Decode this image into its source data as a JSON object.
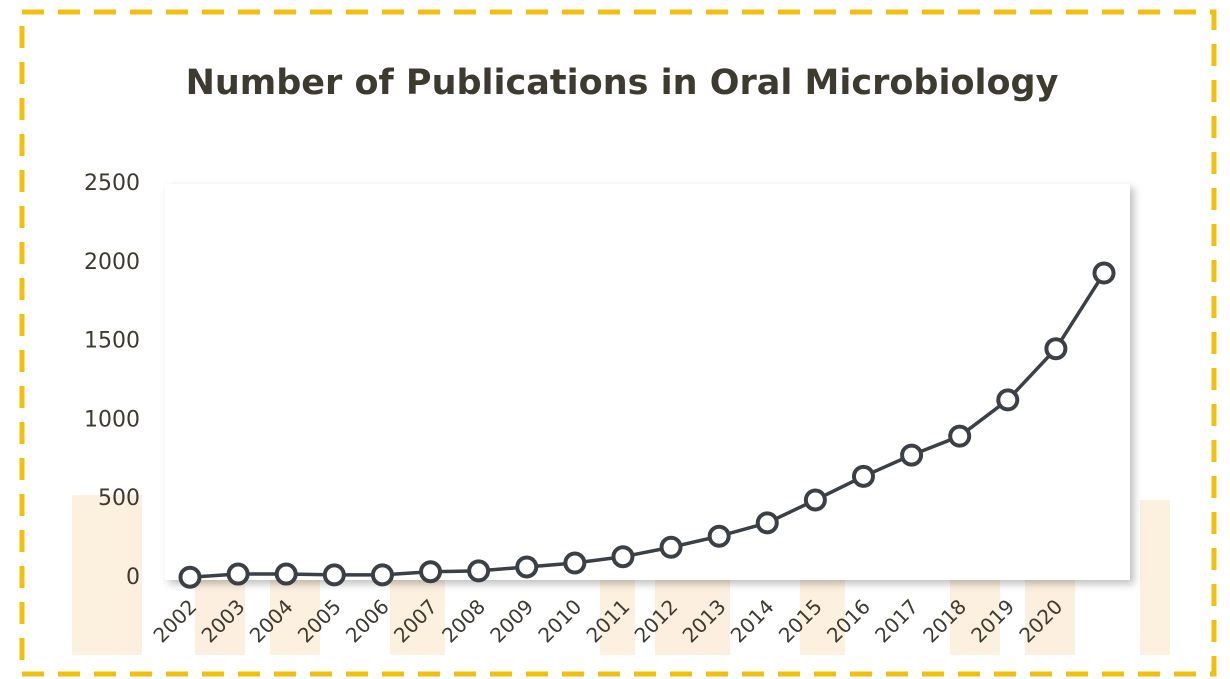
{
  "chart_data": {
    "type": "line",
    "title": "Number of Publications in Oral Microbiology",
    "categories": [
      "2002",
      "2003",
      "2004",
      "2005",
      "2006",
      "2007",
      "2008",
      "2009",
      "2010",
      "2011",
      "2012",
      "2013",
      "2014",
      "2015",
      "2016",
      "2017",
      "2018",
      "2019",
      "2020",
      null
    ],
    "values": [
      5,
      25,
      25,
      20,
      20,
      40,
      45,
      70,
      95,
      135,
      195,
      265,
      350,
      495,
      645,
      780,
      900,
      1130,
      1455,
      1935
    ],
    "color": "#3b4046",
    "ylim": [
      0,
      2500
    ],
    "yticks": [
      0,
      500,
      1000,
      1500,
      2000,
      2500
    ],
    "grid": false
  }
}
